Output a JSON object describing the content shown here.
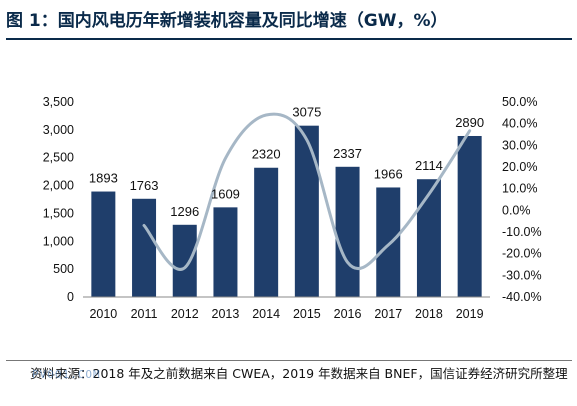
{
  "title": "图 1：国内风电历年新增装机容量及同比增速（GW，%）",
  "source": "资料来源：2018 年及之前数据来自 CWEA，2019 年数据来自 BNEF，国信证券经济研究所整理",
  "watermark": "PV001.COM",
  "colors": {
    "bar": "#1f3e6b",
    "line": "#a6b7c6",
    "title": "#0a2a4a"
  },
  "chart_data": {
    "type": "bar",
    "categories": [
      "2010",
      "2011",
      "2012",
      "2013",
      "2014",
      "2015",
      "2016",
      "2017",
      "2018",
      "2019"
    ],
    "series": [
      {
        "type": "bar",
        "axis": "left",
        "values": [
          1893,
          1763,
          1296,
          1609,
          2320,
          3075,
          2337,
          1966,
          2114,
          2890
        ]
      },
      {
        "type": "line",
        "axis": "right",
        "smooth": true,
        "values": [
          null,
          -7,
          -26.5,
          24,
          44,
          32.5,
          -24,
          -16,
          7.5,
          36.7
        ]
      }
    ],
    "left_axis": {
      "ylim": [
        0,
        3500
      ],
      "ticks": [
        "0",
        "500",
        "1,000",
        "1,500",
        "2,000",
        "2,500",
        "3,000",
        "3,500"
      ]
    },
    "right_axis": {
      "ylim": [
        -40,
        50
      ],
      "ticks": [
        "-40.0%",
        "-30.0%",
        "-20.0%",
        "-10.0%",
        "0.0%",
        "10.0%",
        "20.0%",
        "30.0%",
        "40.0%",
        "50.0%"
      ]
    },
    "data_labels": [
      "1893",
      "1763",
      "1296",
      "1609",
      "2320",
      "3075",
      "2337",
      "1966",
      "2114",
      "2890"
    ],
    "grid": false,
    "legend": "none"
  }
}
